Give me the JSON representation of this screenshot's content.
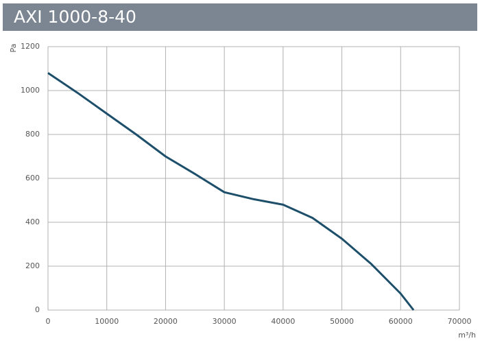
{
  "chart_data": {
    "type": "line",
    "title": "AXI 1000-8-40",
    "x_label": "m³/h",
    "y_label": "Pa",
    "x": [
      0,
      5000,
      10000,
      15000,
      20000,
      25000,
      30000,
      35000,
      40000,
      45000,
      50000,
      55000,
      60000,
      62200
    ],
    "values": [
      1080,
      990,
      895,
      800,
      700,
      620,
      537,
      505,
      480,
      420,
      325,
      210,
      75,
      0
    ],
    "color": "#1d4f6a",
    "xlim": [
      0,
      70000
    ],
    "xticks": [
      0,
      10000,
      20000,
      30000,
      40000,
      50000,
      60000,
      70000
    ],
    "ylim": [
      0,
      1200
    ],
    "yticks": [
      0,
      200,
      400,
      600,
      800,
      1000,
      1200
    ],
    "grid": true
  }
}
